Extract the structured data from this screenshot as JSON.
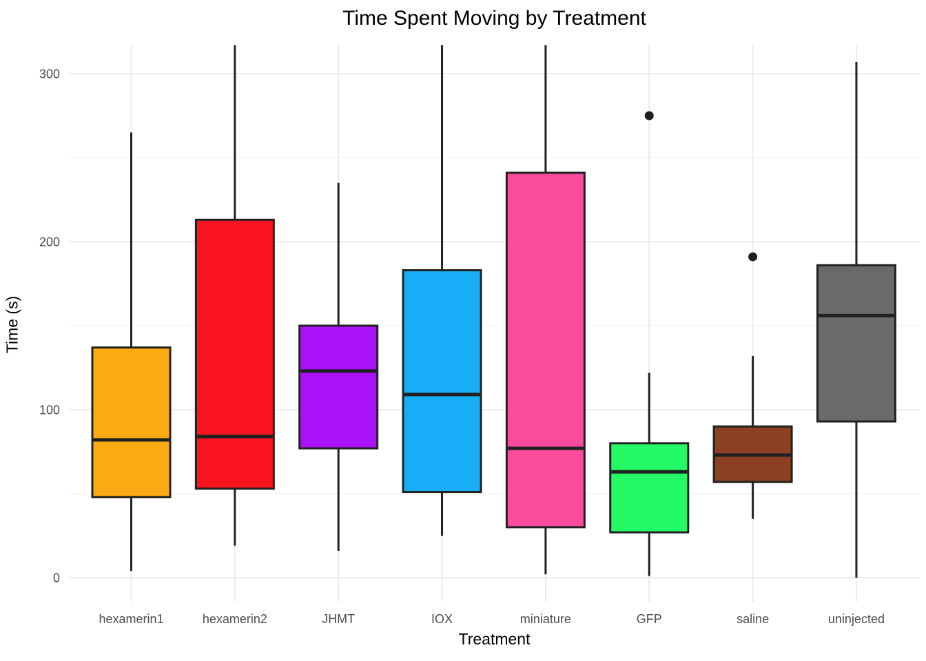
{
  "chart": {
    "title": "Time Spent Moving by Treatment",
    "xlabel": "Treatment",
    "ylabel": "Time (s)"
  },
  "chart_data": {
    "type": "boxplot",
    "title": "Time Spent Moving by Treatment",
    "xlabel": "Treatment",
    "ylabel": "Time (s)",
    "ylim": [
      -14,
      317
    ],
    "yticks_major": [
      0,
      100,
      200,
      300
    ],
    "yticks_minor": [
      50,
      150,
      250
    ],
    "ytick_labels": [
      "0",
      "100",
      "200",
      "300"
    ],
    "grid": "horizontal major+minor and vertical major, light gray on white",
    "legend_position": "none",
    "categories": [
      "hexamerin1",
      "hexamerin2",
      "JHMT",
      "IOX",
      "miniature",
      "GFP",
      "saline",
      "uninjected"
    ],
    "series": [
      {
        "category": "hexamerin1",
        "fill": "#FAAB13",
        "whisker_low": 4,
        "q1": 48,
        "median": 82,
        "q3": 137,
        "whisker_high": 265,
        "outliers": [],
        "clipped_top": false
      },
      {
        "category": "hexamerin2",
        "fill": "#FA1420",
        "whisker_low": 19,
        "q1": 53,
        "median": 84,
        "q3": 213,
        "whisker_high": 317,
        "outliers": [],
        "clipped_top": true
      },
      {
        "category": "JHMT",
        "fill": "#AB11F9",
        "whisker_low": 16,
        "q1": 77,
        "median": 123,
        "q3": 150,
        "whisker_high": 235,
        "outliers": [],
        "clipped_top": false
      },
      {
        "category": "IOX",
        "fill": "#18AEF7",
        "whisker_low": 25,
        "q1": 51,
        "median": 109,
        "q3": 183,
        "whisker_high": 317,
        "outliers": [],
        "clipped_top": true
      },
      {
        "category": "miniature",
        "fill": "#FB4B9D",
        "whisker_low": 2,
        "q1": 30,
        "median": 77,
        "q3": 241,
        "whisker_high": 317,
        "outliers": [],
        "clipped_top": true
      },
      {
        "category": "GFP",
        "fill": "#23FA66",
        "whisker_low": 1,
        "q1": 27,
        "median": 63,
        "q3": 80,
        "whisker_high": 122,
        "outliers": [
          275
        ],
        "clipped_top": false
      },
      {
        "category": "saline",
        "fill": "#8E4023",
        "whisker_low": 35,
        "q1": 57,
        "median": 73,
        "q3": 90,
        "whisker_high": 132,
        "outliers": [
          191
        ],
        "clipped_top": false
      },
      {
        "category": "uninjected",
        "fill": "#6A6A6A",
        "whisker_low": 0,
        "q1": 93,
        "median": 156,
        "q3": 186,
        "whisker_high": 307,
        "outliers": [],
        "clipped_top": false
      }
    ],
    "colors": {
      "background": "#FFFFFF",
      "grid_major": "#E7E7E7",
      "grid_minor": "#F2F2F2",
      "box_border": "#212121",
      "median_line": "#212121",
      "whisker": "#212121",
      "outlier": "#1F1F1F",
      "tick_label": "#4D4D4D",
      "title_text": "#000000"
    }
  }
}
